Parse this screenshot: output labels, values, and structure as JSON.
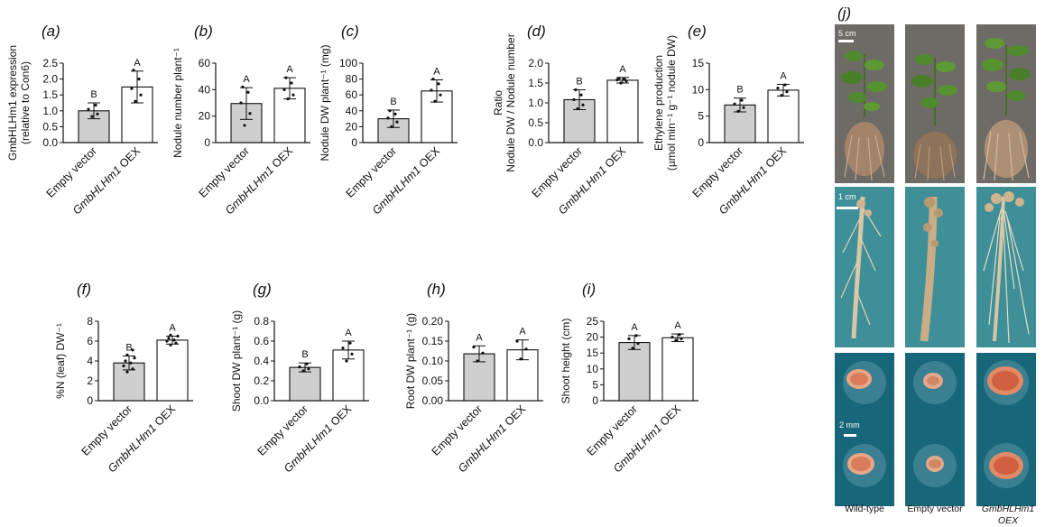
{
  "colors": {
    "empty_vector_bar": "#cfcfcf",
    "oex_bar": "#ffffff",
    "axis": "#111111",
    "photo_bg_top": "#6e6a66",
    "photo_bg_mid": "#3f8f98",
    "photo_bg_bottom": "#17667a"
  },
  "chart_data": [
    {
      "id": "a",
      "panel": "(a)",
      "type": "bar",
      "ylabel_lines": [
        "GmbHLHm1 expression",
        "(relative to Con6)"
      ],
      "ylim": [
        0,
        2.5
      ],
      "yticks": [
        "0.0",
        "0.5",
        "1.0",
        "1.5",
        "2.0",
        "2.5"
      ],
      "categories": [
        "Empty vector",
        "GmbHLHm1 OEX"
      ],
      "values": [
        1.0,
        1.75
      ],
      "errors": [
        0.25,
        0.5
      ],
      "letters": [
        "B",
        "A"
      ],
      "points": [
        [
          0.82,
          0.9,
          1.05,
          1.18
        ],
        [
          1.3,
          1.5,
          1.7,
          2.0,
          2.28
        ]
      ]
    },
    {
      "id": "b",
      "panel": "(b)",
      "type": "bar",
      "ylabel_lines": [
        "Nodule number plant⁻¹"
      ],
      "ylim": [
        0,
        60
      ],
      "yticks": [
        "0",
        "20",
        "40",
        "60"
      ],
      "categories": [
        "Empty vector",
        "GmbHLHm1 OEX"
      ],
      "values": [
        29.5,
        41
      ],
      "errors": [
        12,
        8
      ],
      "letters": [
        "A",
        "A"
      ],
      "points": [
        [
          13,
          22,
          30,
          38,
          42
        ],
        [
          33,
          36,
          40,
          45,
          49
        ]
      ]
    },
    {
      "id": "c",
      "panel": "(c)",
      "type": "bar",
      "ylabel_lines": [
        "Nodule DW plant⁻¹ (mg)"
      ],
      "ylim": [
        0,
        100
      ],
      "yticks": [
        "0",
        "20",
        "40",
        "60",
        "80",
        "100"
      ],
      "categories": [
        "Empty vector",
        "GmbHLHm1 OEX"
      ],
      "values": [
        30,
        65
      ],
      "errors": [
        11,
        14
      ],
      "letters": [
        "B",
        "A"
      ],
      "points": [
        [
          20,
          26,
          31,
          36,
          40
        ],
        [
          52,
          60,
          66,
          74,
          80
        ]
      ]
    },
    {
      "id": "d",
      "panel": "(d)",
      "type": "bar",
      "ylabel_lines": [
        "Ratio",
        "Nodule DW / Nodule number"
      ],
      "ylim": [
        0,
        2.0
      ],
      "yticks": [
        "0.0",
        "0.5",
        "1.0",
        "1.5",
        "2.0"
      ],
      "categories": [
        "Empty vector",
        "GmbHLHm1 OEX"
      ],
      "values": [
        1.08,
        1.57
      ],
      "errors": [
        0.25,
        0.07
      ],
      "letters": [
        "B",
        "A"
      ],
      "points": [
        [
          0.85,
          0.95,
          1.08,
          1.2,
          1.33
        ],
        [
          1.5,
          1.55,
          1.58,
          1.6,
          1.62
        ]
      ]
    },
    {
      "id": "e",
      "panel": "(e)",
      "type": "bar",
      "ylabel_lines": [
        "Ethylene production",
        "(µmol min⁻¹ g⁻¹ nodule DW)"
      ],
      "ylim": [
        0,
        15
      ],
      "yticks": [
        "0",
        "5",
        "10",
        "15"
      ],
      "categories": [
        "Empty vector",
        "GmbHLHm1 OEX"
      ],
      "values": [
        7.1,
        9.9
      ],
      "errors": [
        1.3,
        1.1
      ],
      "letters": [
        "B",
        "A"
      ],
      "points": [
        [
          5.9,
          6.6,
          7.3,
          8.0
        ],
        [
          8.9,
          9.6,
          10.3,
          10.9
        ]
      ]
    },
    {
      "id": "f",
      "panel": "(f)",
      "type": "bar",
      "ylabel_lines": [
        "%N (leaf) DW⁻¹"
      ],
      "ylim": [
        0,
        8
      ],
      "yticks": [
        "0",
        "2",
        "4",
        "6",
        "8"
      ],
      "categories": [
        "Empty vector",
        "GmbHLHm1 OEX"
      ],
      "values": [
        3.8,
        6.1
      ],
      "errors": [
        0.7,
        0.4
      ],
      "letters": [
        "B",
        "A"
      ],
      "points": [
        [
          2.9,
          3.2,
          3.5,
          3.8,
          4.0,
          4.3,
          4.6,
          5.1
        ],
        [
          5.6,
          5.8,
          6.0,
          6.1,
          6.3,
          6.5,
          6.6
        ]
      ]
    },
    {
      "id": "g",
      "panel": "(g)",
      "type": "bar",
      "ylabel_lines": [
        "Shoot DW plant⁻¹ (g)"
      ],
      "ylim": [
        0,
        0.8
      ],
      "yticks": [
        "0.0",
        "0.2",
        "0.4",
        "0.6",
        "0.8"
      ],
      "categories": [
        "Empty vector",
        "GmbHLHm1 OEX"
      ],
      "values": [
        0.335,
        0.51
      ],
      "errors": [
        0.045,
        0.09
      ],
      "letters": [
        "B",
        "A"
      ],
      "points": [
        [
          0.3,
          0.32,
          0.34,
          0.37
        ],
        [
          0.4,
          0.47,
          0.53,
          0.58
        ]
      ]
    },
    {
      "id": "h",
      "panel": "(h)",
      "type": "bar",
      "ylabel_lines": [
        "Root DW plant⁻¹ (g)"
      ],
      "ylim": [
        0,
        0.2
      ],
      "yticks": [
        "0.00",
        "0.05",
        "0.10",
        "0.15",
        "0.20"
      ],
      "categories": [
        "Empty vector",
        "GmbHLHm1 OEX"
      ],
      "values": [
        0.118,
        0.128
      ],
      "errors": [
        0.02,
        0.025
      ],
      "letters": [
        "A",
        "A"
      ],
      "points": [
        [
          0.1,
          0.12,
          0.135
        ],
        [
          0.105,
          0.13,
          0.15
        ]
      ]
    },
    {
      "id": "i",
      "panel": "(i)",
      "type": "bar",
      "ylabel_lines": [
        "Shoot height (cm)"
      ],
      "ylim": [
        0,
        25
      ],
      "yticks": [
        "0",
        "5",
        "10",
        "15",
        "20",
        "25"
      ],
      "categories": [
        "Empty vector",
        "GmbHLHm1 OEX"
      ],
      "values": [
        18.3,
        19.8
      ],
      "errors": [
        2.2,
        1.2
      ],
      "letters": [
        "A",
        "A"
      ],
      "points": [
        [
          16.5,
          18,
          19.5,
          20.5
        ],
        [
          19,
          19.5,
          20,
          20.8
        ]
      ]
    }
  ],
  "photo_panel": {
    "panel": "(j)",
    "scale_bars": [
      "5 cm",
      "1 cm",
      "2 mm"
    ],
    "columns": [
      "Wild-type",
      "Empty vector",
      "GmbHLHm1 OEX"
    ]
  }
}
